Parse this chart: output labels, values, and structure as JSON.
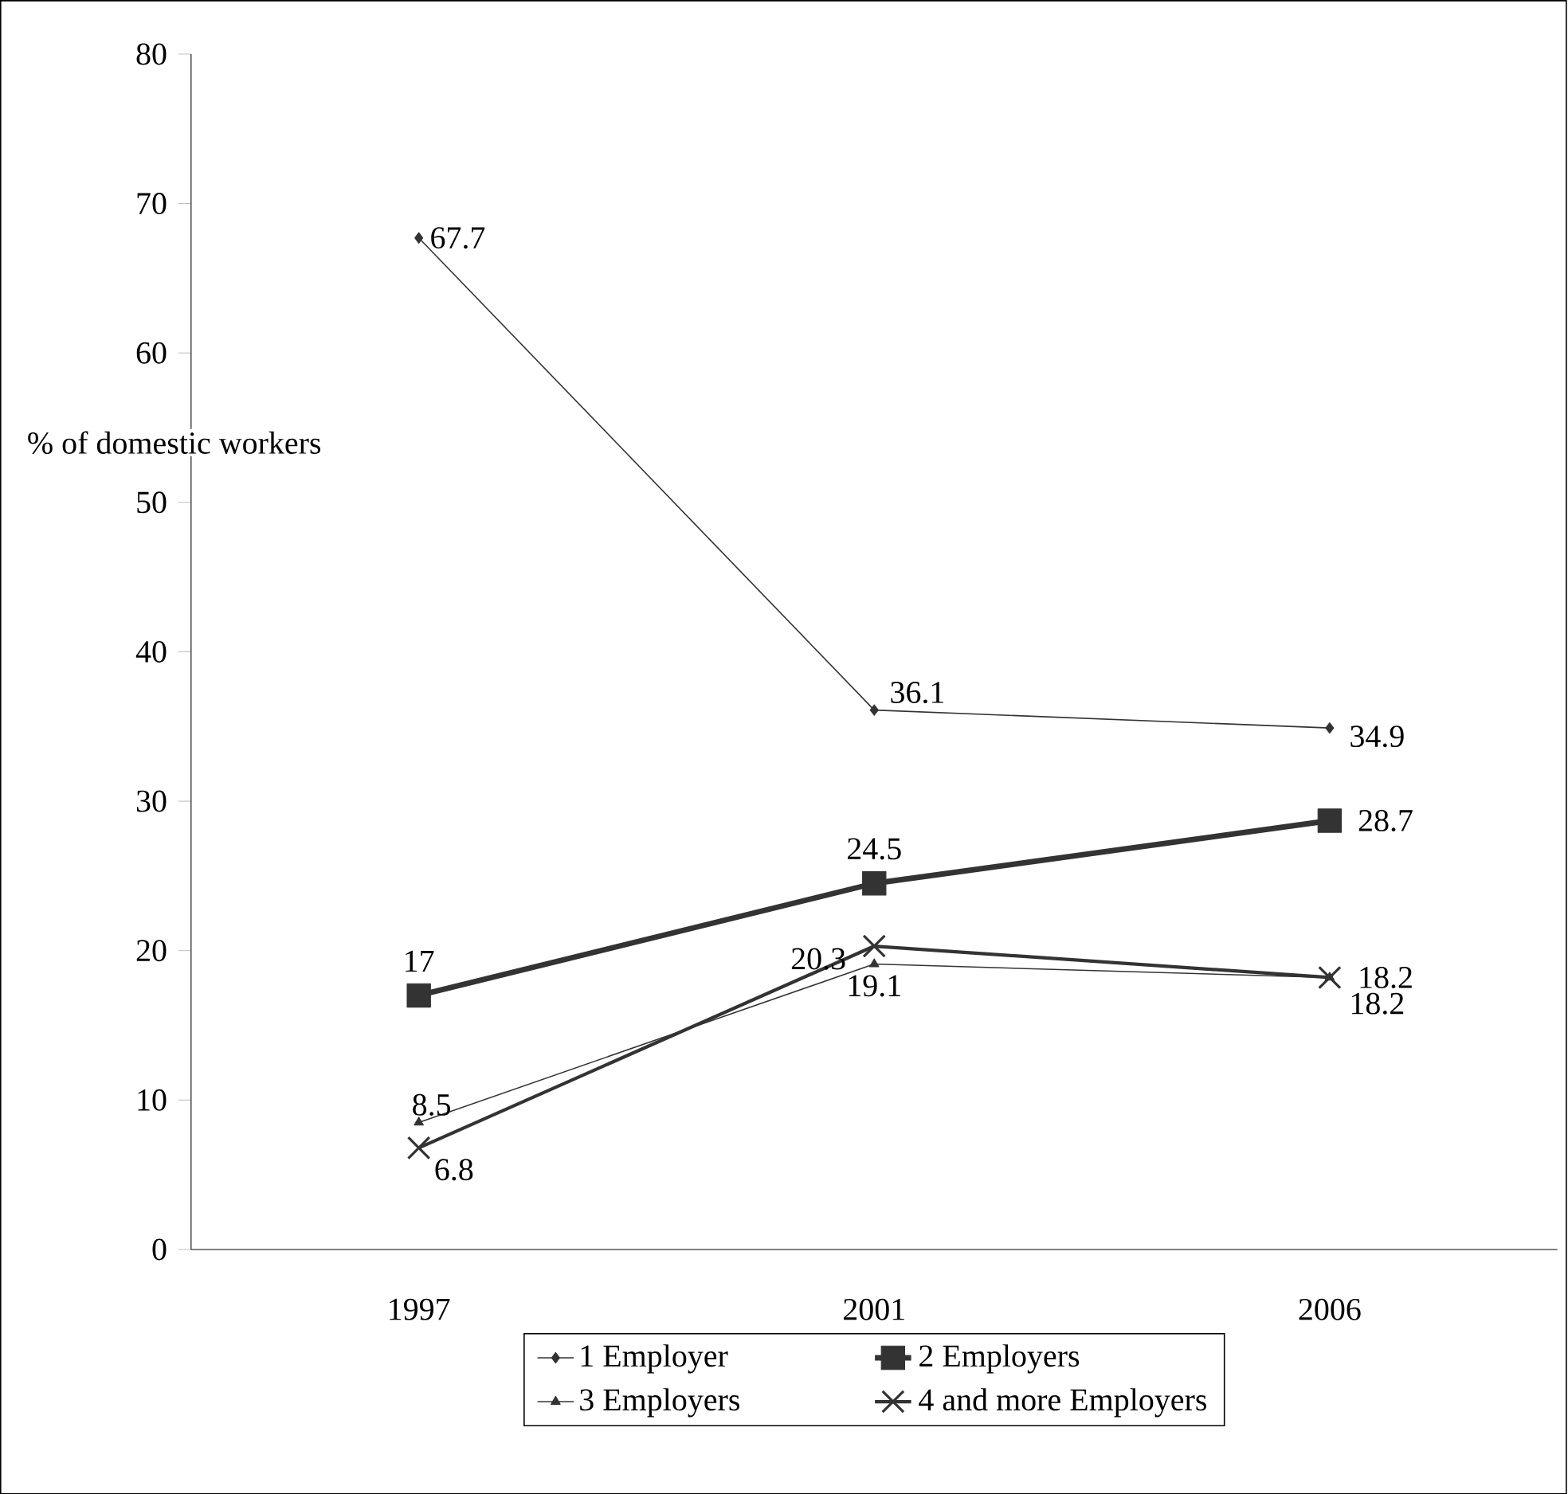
{
  "chart_data": {
    "type": "line",
    "ylabel": "% of domestic workers",
    "categories": [
      "1997",
      "2001",
      "2006"
    ],
    "series": [
      {
        "name": "1 Employer",
        "color": "#333333",
        "marker": "diamond",
        "values": [
          67.7,
          36.1,
          34.9
        ]
      },
      {
        "name": "2 Employers",
        "color": "#333333",
        "marker": "square",
        "values": [
          17,
          24.5,
          28.7
        ]
      },
      {
        "name": "3 Employers",
        "color": "#333333",
        "marker": "triangle",
        "values": [
          8.5,
          19.1,
          18.2
        ]
      },
      {
        "name": "4 and more Employers",
        "color": "#333333",
        "marker": "cross",
        "values": [
          6.8,
          20.3,
          18.2
        ]
      }
    ],
    "ylim": [
      0,
      80
    ],
    "yticks": [
      0,
      10,
      20,
      30,
      40,
      50,
      60,
      70,
      80
    ],
    "grid": false,
    "legend": "bottom",
    "data_labels": true
  }
}
